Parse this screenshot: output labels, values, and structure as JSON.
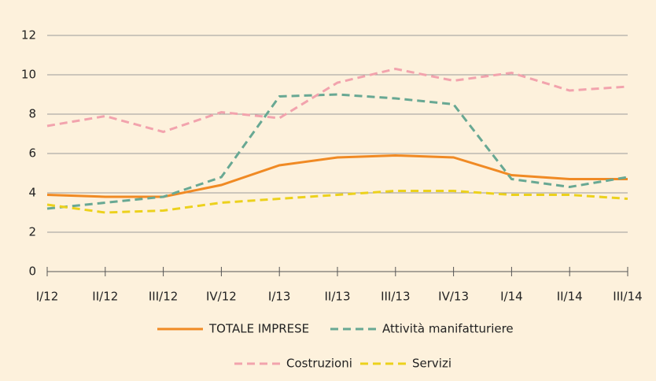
{
  "chart_data": {
    "type": "line",
    "categories": [
      "I/12",
      "II/12",
      "III/12",
      "IV/12",
      "I/13",
      "II/13",
      "III/13",
      "IV/13",
      "I/14",
      "II/14",
      "III/14"
    ],
    "series": [
      {
        "name": "TOTALE IMPRESE",
        "color": "#f08a24",
        "dashed": false,
        "values": [
          3.9,
          3.8,
          3.8,
          4.4,
          5.4,
          5.8,
          5.9,
          5.8,
          4.9,
          4.7,
          4.7
        ]
      },
      {
        "name": "Attività manifatturiere",
        "color": "#68a893",
        "dashed": true,
        "values": [
          3.2,
          3.5,
          3.8,
          4.8,
          8.9,
          9.0,
          8.8,
          8.5,
          4.7,
          4.3,
          4.8
        ]
      },
      {
        "name": "Costruzioni",
        "color": "#f2a3ad",
        "dashed": true,
        "values": [
          7.4,
          7.9,
          7.1,
          8.1,
          7.8,
          9.6,
          10.3,
          9.7,
          10.1,
          9.2,
          9.4
        ]
      },
      {
        "name": "Servizi",
        "color": "#ecd11c",
        "dashed": true,
        "values": [
          3.4,
          3.0,
          3.1,
          3.5,
          3.7,
          3.9,
          4.1,
          4.1,
          3.9,
          3.9,
          3.7
        ]
      }
    ],
    "ylim": [
      0,
      12
    ],
    "yticks": [
      0,
      2,
      4,
      6,
      8,
      10,
      12
    ],
    "grid": true
  }
}
